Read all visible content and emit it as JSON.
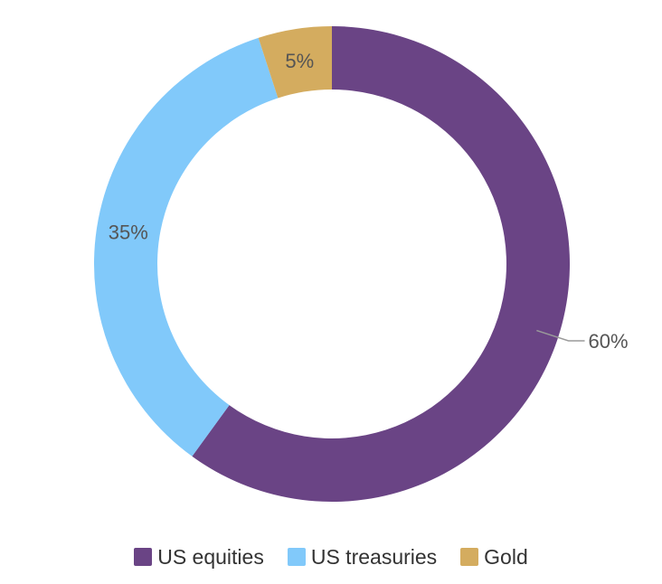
{
  "chart_data": {
    "type": "pie",
    "variant": "donut",
    "title": "",
    "categories": [
      "US equities",
      "US treasuries",
      "Gold"
    ],
    "values": [
      60,
      35,
      5
    ],
    "labels": [
      "60%",
      "35%",
      "5%"
    ],
    "colors": [
      "#6a4485",
      "#81c9fa",
      "#d4ac5f"
    ],
    "legend_position": "bottom",
    "start": "12 o'clock",
    "direction": "clockwise"
  },
  "legend": {
    "items": [
      {
        "label": "US equities",
        "color": "#6a4485"
      },
      {
        "label": "US treasuries",
        "color": "#81c9fa"
      },
      {
        "label": "Gold",
        "color": "#d4ac5f"
      }
    ]
  }
}
